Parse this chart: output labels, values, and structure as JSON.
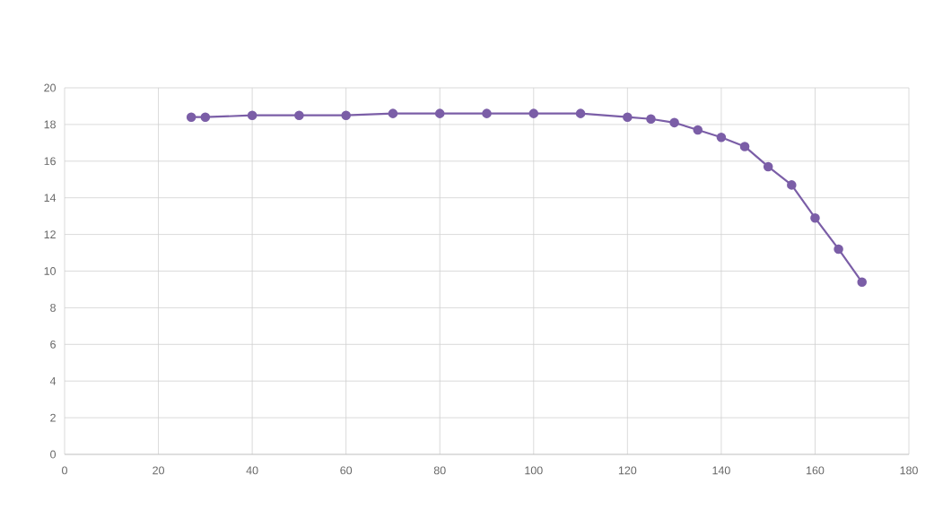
{
  "chart_data": {
    "type": "line",
    "x": [
      27,
      30,
      40,
      50,
      60,
      70,
      80,
      90,
      100,
      110,
      120,
      125,
      130,
      135,
      140,
      145,
      150,
      155,
      160,
      165,
      170
    ],
    "series": [
      {
        "color": "#7b5ea7",
        "values": [
          18.4,
          18.4,
          18.5,
          18.5,
          18.5,
          18.6,
          18.6,
          18.6,
          18.6,
          18.6,
          18.4,
          18.3,
          18.1,
          17.7,
          17.3,
          16.8,
          15.7,
          14.7,
          12.9,
          11.2,
          9.4
        ]
      }
    ],
    "xlim": [
      0,
      180
    ],
    "ylim": [
      0,
      20
    ],
    "xticks": [
      0,
      20,
      40,
      60,
      80,
      100,
      120,
      140,
      160,
      180
    ],
    "yticks": [
      0,
      2,
      4,
      6,
      8,
      10,
      12,
      14,
      16,
      18,
      20
    ],
    "grid": true,
    "marker": "circle",
    "line_style": "solid"
  }
}
